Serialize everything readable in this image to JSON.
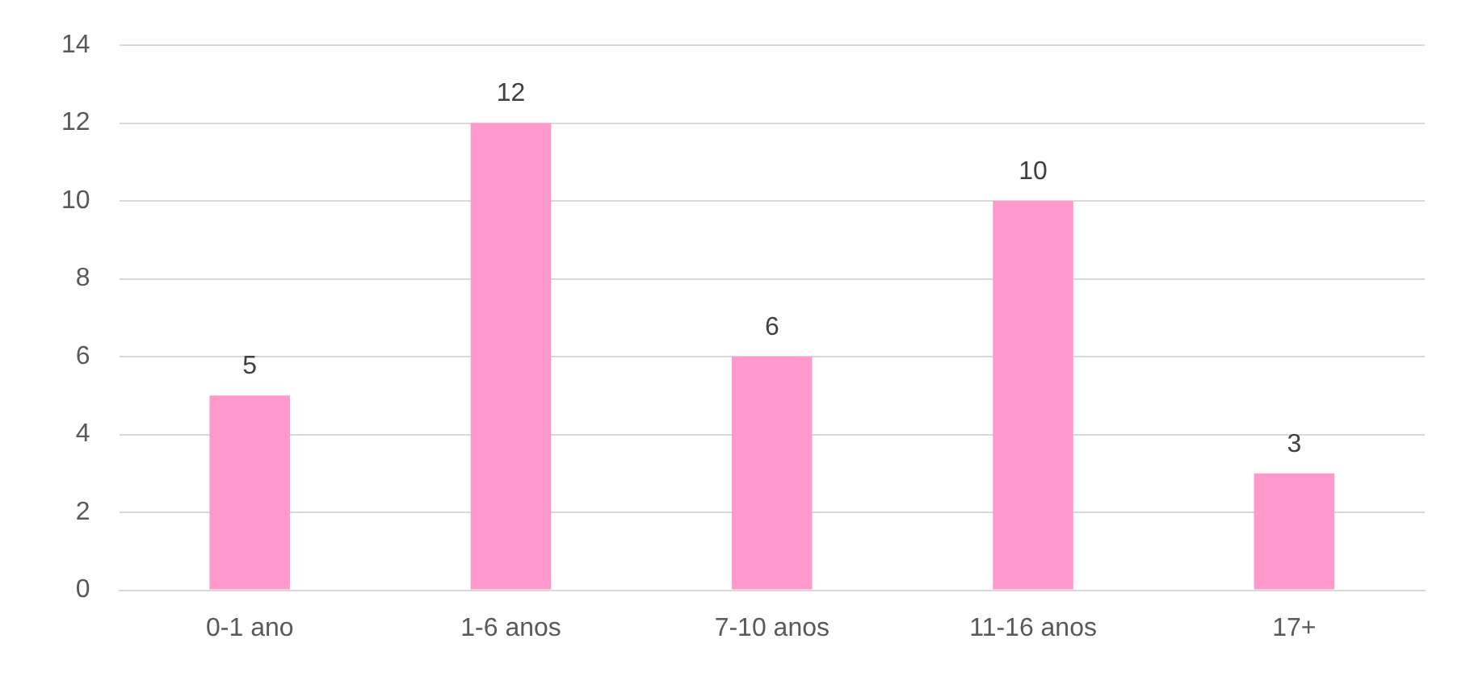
{
  "chart_data": {
    "type": "bar",
    "categories": [
      "0-1 ano",
      "1-6 anos",
      "7-10 anos",
      "11-16 anos",
      "17+"
    ],
    "values": [
      5,
      12,
      6,
      10,
      3
    ],
    "color": "#ff99cc",
    "ylim": [
      0,
      14
    ],
    "yticks": [
      0,
      2,
      4,
      6,
      8,
      10,
      12,
      14
    ],
    "grid": "y",
    "data_labels": true,
    "legend": false
  }
}
